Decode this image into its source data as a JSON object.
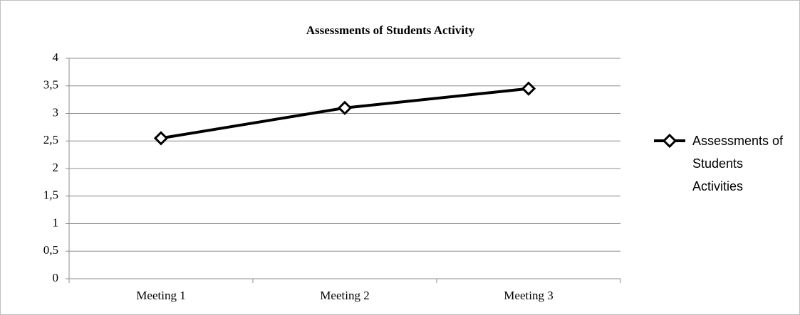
{
  "chart_data": {
    "type": "line",
    "title": "Assessments of Students Activity",
    "categories": [
      "Meeting 1",
      "Meeting 2",
      "Meeting 3"
    ],
    "series": [
      {
        "name": "Assessments of Students Activities",
        "color": "#000000",
        "values": [
          2.55,
          3.1,
          3.45
        ]
      }
    ],
    "ylim": [
      0,
      4
    ],
    "yticks": [
      0,
      {
        "value": 0.5,
        "label": "0,5"
      },
      1,
      {
        "value": 1.5,
        "label": "1,5"
      },
      2,
      {
        "value": 2.5,
        "label": "2,5"
      },
      3,
      {
        "value": 3.5,
        "label": "3,5"
      },
      4
    ],
    "grid": true,
    "legend": "right"
  }
}
